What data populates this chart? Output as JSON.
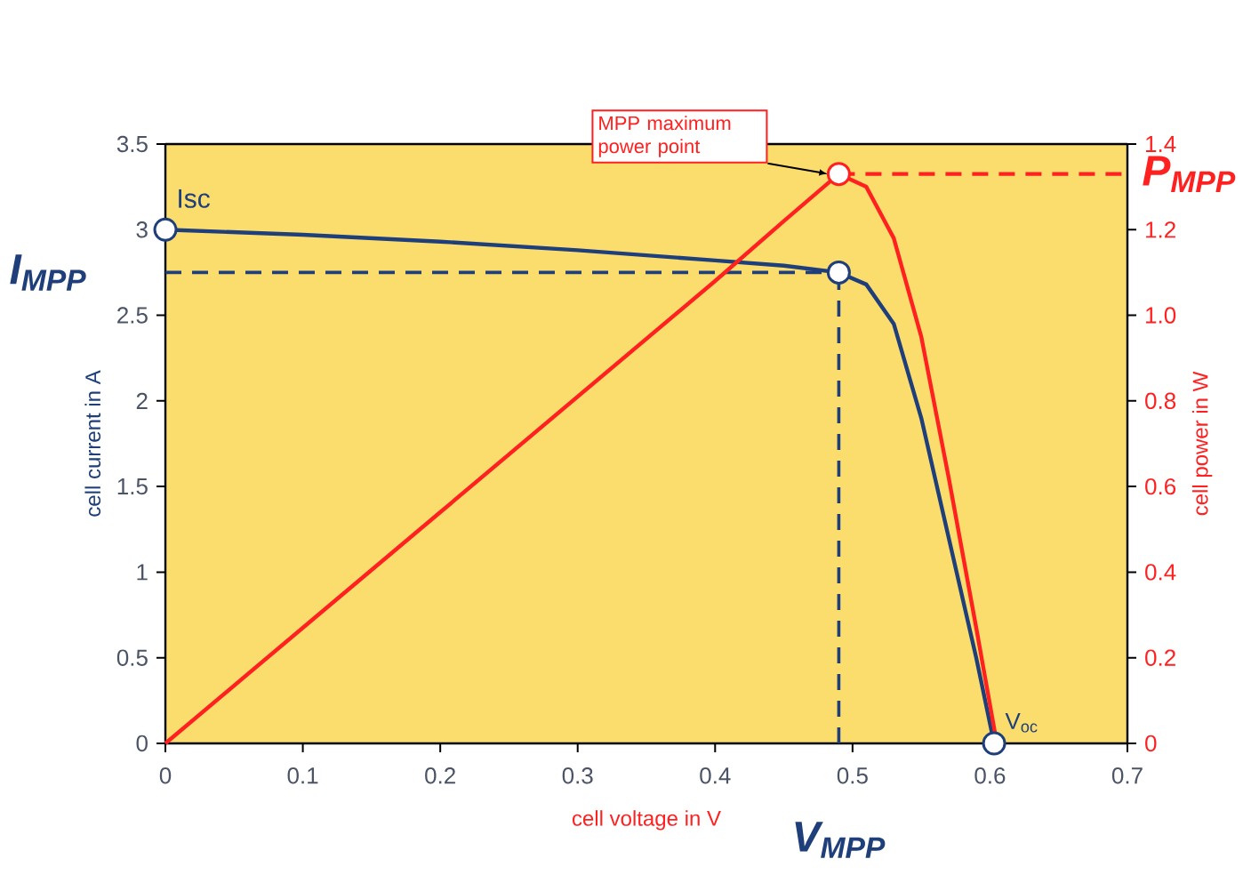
{
  "chart_data": {
    "type": "line",
    "xlabel": "cell voltage in V",
    "ylabel": "cell current in A",
    "y2label": "cell power in W",
    "xlim": [
      0,
      0.7
    ],
    "xticks": [
      0,
      0.1,
      0.2,
      0.3,
      0.4,
      0.5,
      0.6,
      0.7
    ],
    "ylim": [
      0,
      3.5
    ],
    "yticks": [
      0,
      0.5,
      1,
      1.5,
      2,
      2.5,
      3,
      3.5
    ],
    "y2lim": [
      0,
      1.4
    ],
    "y2ticks": [
      {
        "value": 0,
        "label": "0"
      },
      {
        "value": 0.2,
        "label": "0.2"
      },
      {
        "value": 0.4,
        "label": "0.4"
      },
      {
        "value": 0.6,
        "label": "0.6"
      },
      {
        "value": 0.8,
        "label": "0.8"
      },
      {
        "value": 1.0,
        "label": "1.0"
      },
      {
        "value": 1.2,
        "label": "1.2"
      },
      {
        "value": 1.4,
        "label": "1.4"
      }
    ],
    "series": [
      {
        "color": "#1f3f7a",
        "x": [
          0,
          0.1,
          0.2,
          0.3,
          0.4,
          0.45,
          0.49,
          0.51,
          0.53,
          0.55,
          0.57,
          0.59,
          0.603
        ],
        "values": [
          3.0,
          2.97,
          2.93,
          2.88,
          2.82,
          2.79,
          2.75,
          2.68,
          2.45,
          1.9,
          1.2,
          0.5,
          0
        ]
      },
      {
        "color": "#ff2020",
        "axis": "y2",
        "x": [
          0,
          0.1,
          0.2,
          0.3,
          0.4,
          0.45,
          0.49,
          0.51,
          0.53,
          0.55,
          0.57,
          0.59,
          0.605
        ],
        "values": [
          0,
          0.27,
          0.54,
          0.81,
          1.08,
          1.22,
          1.33,
          1.3,
          1.18,
          0.95,
          0.62,
          0.27,
          0
        ]
      }
    ],
    "ref_lines": [
      {
        "axis": "y",
        "value": 2.75,
        "label": "I$_{MPP}$",
        "color": "#1f3f7a",
        "line_style": "dashed"
      },
      {
        "axis": "x",
        "value": 0.49,
        "label": "V$_{MPP}$",
        "color": "#1f3f7a",
        "line_style": "dashed"
      },
      {
        "axis": "y2",
        "value": 1.33,
        "label": "P$_{MPP}$",
        "color": "#ff2020",
        "line_style": "dashed"
      }
    ],
    "annotations": [
      {
        "text": "Isc",
        "x": 0,
        "y": 3.0
      },
      "MPP maximum power point",
      {
        "text": "V$_{oc}$",
        "x": 0.603,
        "y": 0
      }
    ]
  }
}
